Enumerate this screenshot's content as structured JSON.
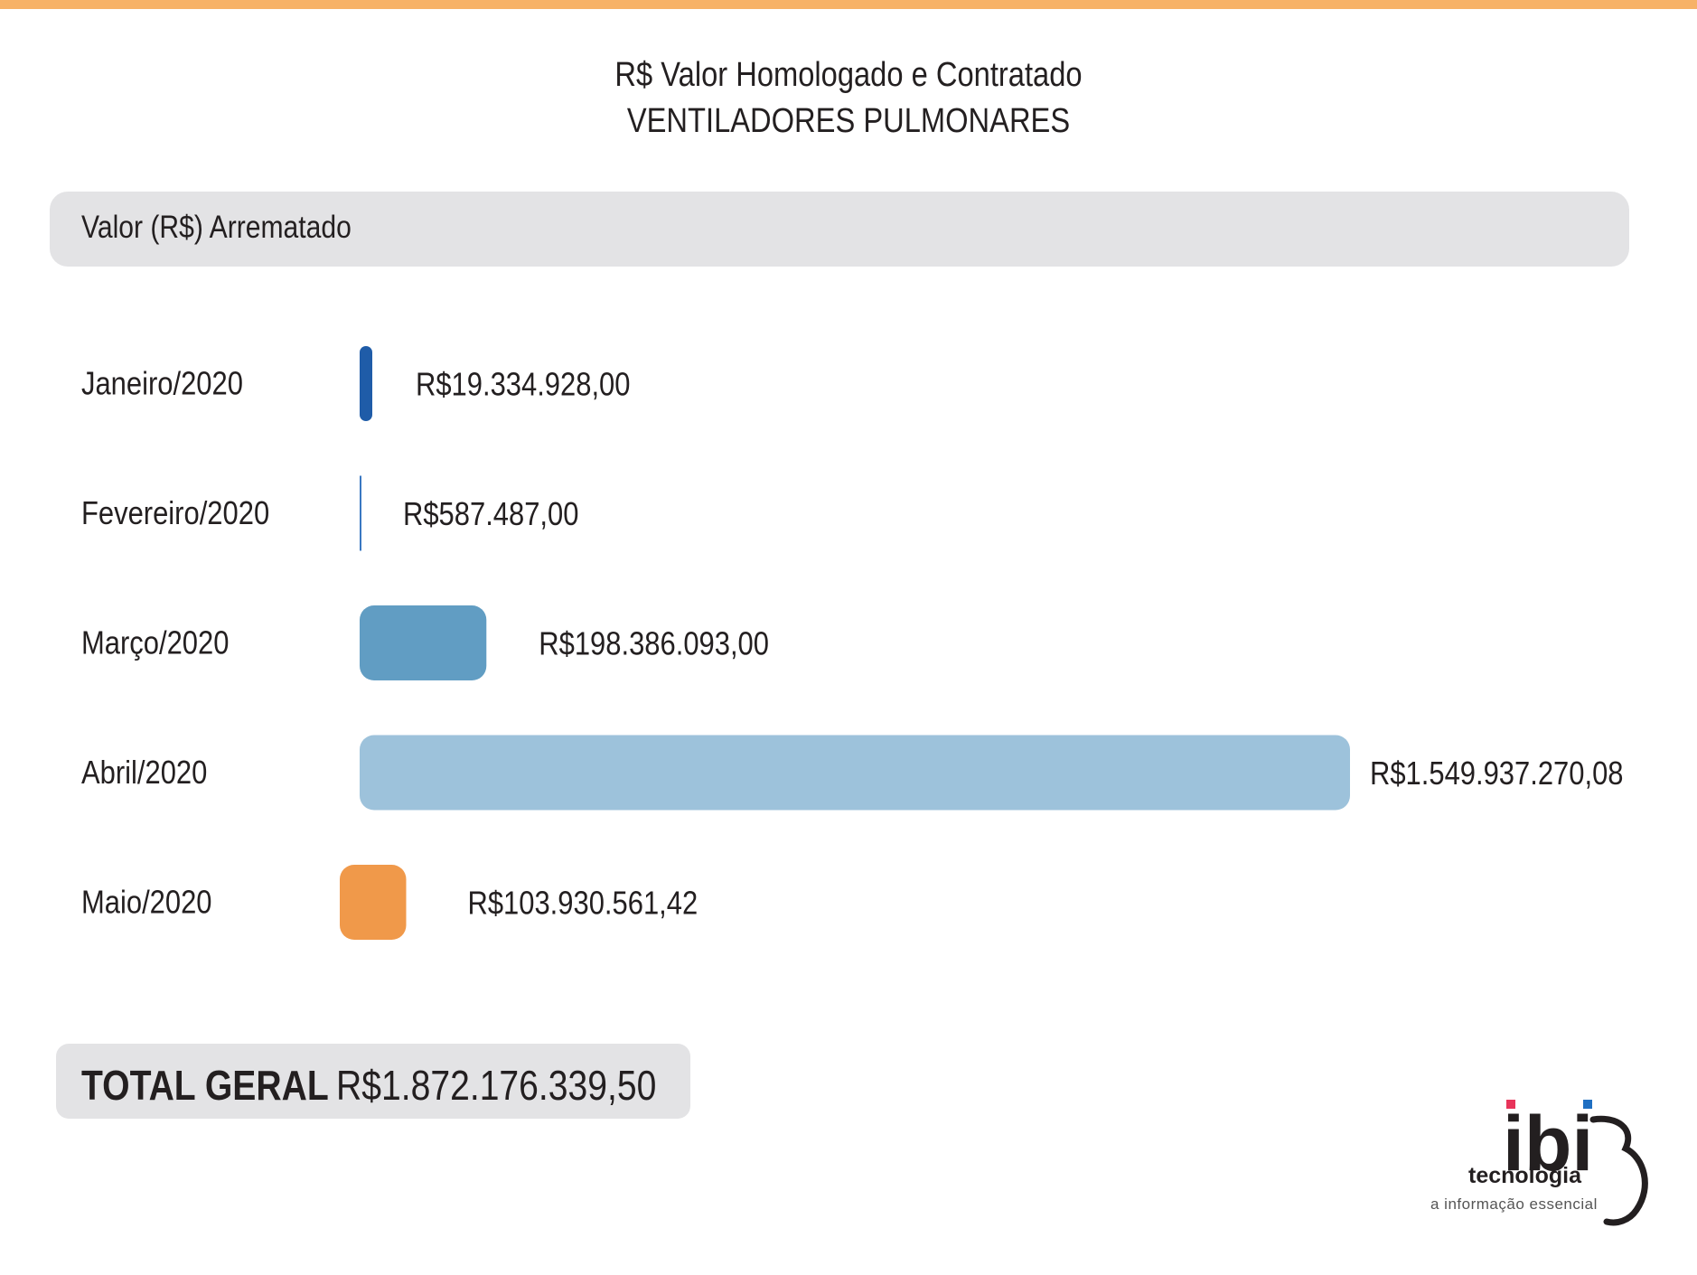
{
  "colors": {
    "accent": "#f7b267",
    "text": "#231f20",
    "band": "#e3e3e5"
  },
  "chart_data": {
    "type": "bar",
    "orientation": "horizontal",
    "title": "R$ Valor Homologado e Contratado",
    "subtitle": "VENTILADORES PULMONARES",
    "header": "Valor (R$) Arrematado",
    "categories": [
      "Janeiro/2020",
      "Fevereiro/2020",
      "Março/2020",
      "Abril/2020",
      "Maio/2020"
    ],
    "values": [
      19334928.0,
      587487.0,
      198386093.0,
      1549937270.08,
      103930561.42
    ],
    "value_labels": [
      "R$19.334.928,00",
      "R$587.487,00",
      "R$198.386.093,00",
      "R$1.549.937.270,08",
      "R$103.930.561,42"
    ],
    "colors": [
      "#1f5ca8",
      "#3a78c2",
      "#619dc3",
      "#9dc2db",
      "#f0994a"
    ],
    "grid": false,
    "legend": "none"
  },
  "total": {
    "label": "TOTAL GERAL",
    "value": "R$1.872.176.339,50"
  },
  "logo": {
    "wordmark": "ibi",
    "name": "tecnologia",
    "tagline": "a informação essencial",
    "dot_colors": [
      "#e8345a",
      "#1f6fc2"
    ]
  }
}
